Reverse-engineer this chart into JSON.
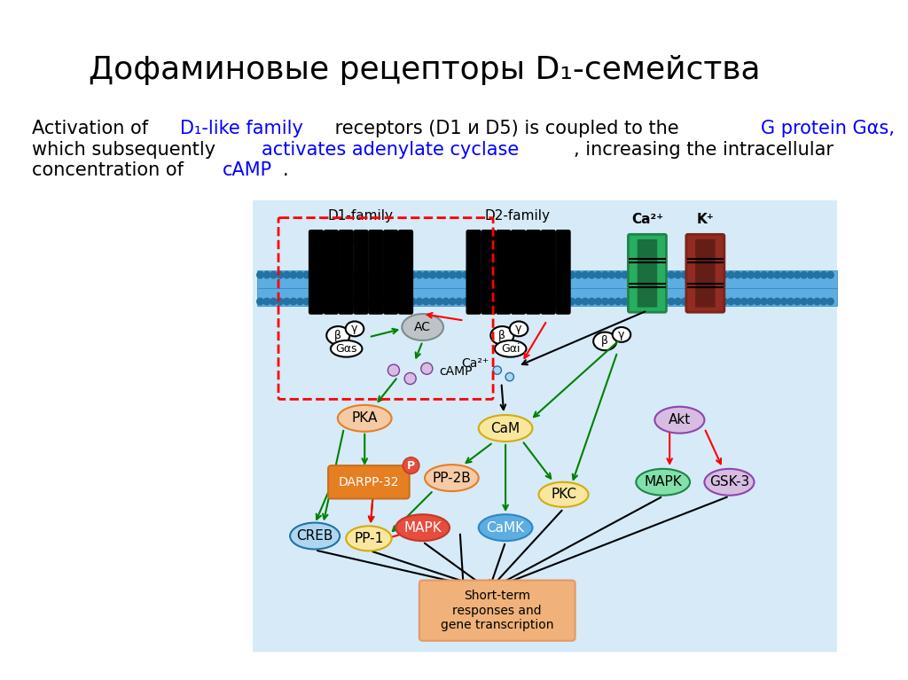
{
  "title": "Дофаминовые рецепторы D₁-семейства",
  "background": "#ffffff",
  "cell_bg": "#d6eaf8",
  "membrane_color": "#5dade2",
  "title_fontsize": 26,
  "text_line1_black": "Activation of ",
  "text_line1_blue": "D₁-like family",
  "text_line1_black2": " receptors (D1 и D5) is coupled to the ",
  "text_line1_blue2": "G protein Gαs,",
  "text_line2_black": "which subsequently ",
  "text_line2_blue": "activates adenylate cyclase",
  "text_line2_black2": ", increasing the intracellular",
  "text_line3_black": "concentration of ",
  "text_line3_blue": "cAMP",
  "text_line3_black2": "."
}
